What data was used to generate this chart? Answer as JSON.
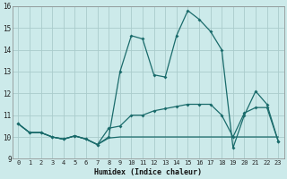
{
  "xlabel": "Humidex (Indice chaleur)",
  "background_color": "#cceaea",
  "grid_color": "#aacccc",
  "line_color": "#1a6b6b",
  "xlim": [
    -0.5,
    23.5
  ],
  "ylim": [
    9,
    16
  ],
  "yticks": [
    9,
    10,
    11,
    12,
    13,
    14,
    15,
    16
  ],
  "xticks": [
    0,
    1,
    2,
    3,
    4,
    5,
    6,
    7,
    8,
    9,
    10,
    11,
    12,
    13,
    14,
    15,
    16,
    17,
    18,
    19,
    20,
    21,
    22,
    23
  ],
  "series": [
    {
      "x": [
        0,
        1,
        2,
        3,
        4,
        5,
        6,
        7,
        8,
        9,
        10,
        11,
        12,
        13,
        14,
        15,
        16,
        17,
        18,
        19,
        20,
        21,
        22,
        23
      ],
      "y": [
        10.6,
        10.2,
        10.2,
        10.0,
        9.9,
        10.05,
        9.9,
        9.65,
        9.95,
        10.0,
        10.0,
        10.0,
        10.0,
        10.0,
        10.0,
        10.0,
        10.0,
        10.0,
        10.0,
        10.0,
        10.0,
        10.0,
        10.0,
        10.0
      ],
      "marker": null,
      "lw": 0.9
    },
    {
      "x": [
        0,
        1,
        2,
        3,
        4,
        5,
        6,
        7,
        8,
        9,
        10,
        11,
        12,
        13,
        14,
        15,
        16,
        17,
        18,
        19,
        20,
        21,
        22,
        23
      ],
      "y": [
        10.6,
        10.2,
        10.2,
        10.0,
        9.9,
        10.05,
        9.9,
        9.65,
        10.4,
        10.5,
        11.0,
        11.0,
        11.2,
        11.3,
        11.4,
        11.5,
        11.5,
        11.5,
        11.0,
        10.0,
        11.1,
        11.35,
        11.35,
        9.8
      ],
      "marker": "D",
      "lw": 0.9
    },
    {
      "x": [
        0,
        1,
        2,
        3,
        4,
        5,
        6,
        7,
        8,
        9,
        10,
        11,
        12,
        13,
        14,
        15,
        16,
        17,
        18,
        19,
        20,
        21,
        22,
        23
      ],
      "y": [
        10.6,
        10.2,
        10.2,
        10.0,
        9.9,
        10.05,
        9.9,
        9.65,
        10.0,
        13.0,
        14.65,
        14.5,
        12.85,
        12.75,
        14.65,
        15.8,
        15.4,
        14.85,
        14.0,
        9.5,
        11.0,
        12.1,
        11.5,
        9.8
      ],
      "marker": "D",
      "lw": 0.9
    }
  ]
}
